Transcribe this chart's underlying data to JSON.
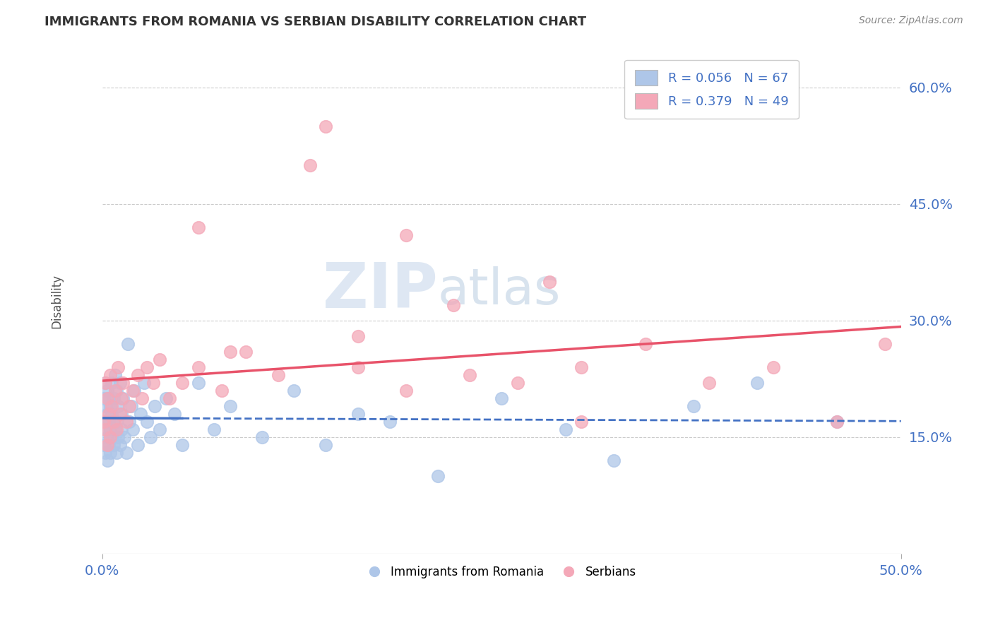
{
  "title": "IMMIGRANTS FROM ROMANIA VS SERBIAN DISABILITY CORRELATION CHART",
  "source": "Source: ZipAtlas.com",
  "ylabel": "Disability",
  "xlim": [
    0.0,
    0.5
  ],
  "ylim": [
    0.0,
    0.65
  ],
  "x_ticks": [
    0.0,
    0.5
  ],
  "x_tick_labels": [
    "0.0%",
    "50.0%"
  ],
  "y_ticks": [
    0.15,
    0.3,
    0.45,
    0.6
  ],
  "y_tick_labels": [
    "15.0%",
    "30.0%",
    "45.0%",
    "60.0%"
  ],
  "grid_color": "#cccccc",
  "background_color": "#ffffff",
  "romania_color": "#aec6e8",
  "serbia_color": "#f4a8b8",
  "romania_line_color": "#4472c4",
  "serbia_line_color": "#e8536a",
  "legend_R_romania": "R = 0.056",
  "legend_N_romania": "N = 67",
  "legend_R_serbia": "R = 0.379",
  "legend_N_serbia": "N = 49",
  "watermark_zip": "ZIP",
  "watermark_atlas": "atlas",
  "romania_scatter_x": [
    0.001,
    0.001,
    0.001,
    0.002,
    0.002,
    0.002,
    0.002,
    0.003,
    0.003,
    0.003,
    0.003,
    0.004,
    0.004,
    0.004,
    0.005,
    0.005,
    0.005,
    0.006,
    0.006,
    0.006,
    0.007,
    0.007,
    0.007,
    0.008,
    0.008,
    0.009,
    0.009,
    0.009,
    0.01,
    0.01,
    0.011,
    0.011,
    0.012,
    0.012,
    0.013,
    0.014,
    0.015,
    0.016,
    0.017,
    0.018,
    0.019,
    0.02,
    0.022,
    0.024,
    0.026,
    0.028,
    0.03,
    0.033,
    0.036,
    0.04,
    0.045,
    0.05,
    0.06,
    0.07,
    0.08,
    0.1,
    0.12,
    0.14,
    0.16,
    0.18,
    0.21,
    0.25,
    0.29,
    0.32,
    0.37,
    0.41,
    0.46
  ],
  "romania_scatter_y": [
    0.17,
    0.14,
    0.2,
    0.16,
    0.13,
    0.19,
    0.22,
    0.15,
    0.18,
    0.12,
    0.21,
    0.14,
    0.17,
    0.2,
    0.16,
    0.13,
    0.19,
    0.15,
    0.18,
    0.22,
    0.14,
    0.17,
    0.2,
    0.16,
    0.23,
    0.13,
    0.17,
    0.21,
    0.15,
    0.19,
    0.14,
    0.22,
    0.16,
    0.18,
    0.2,
    0.15,
    0.13,
    0.27,
    0.17,
    0.19,
    0.16,
    0.21,
    0.14,
    0.18,
    0.22,
    0.17,
    0.15,
    0.19,
    0.16,
    0.2,
    0.18,
    0.14,
    0.22,
    0.16,
    0.19,
    0.15,
    0.21,
    0.14,
    0.18,
    0.17,
    0.1,
    0.2,
    0.16,
    0.12,
    0.19,
    0.22,
    0.17
  ],
  "serbia_scatter_x": [
    0.001,
    0.002,
    0.002,
    0.003,
    0.003,
    0.004,
    0.005,
    0.005,
    0.006,
    0.007,
    0.008,
    0.009,
    0.01,
    0.011,
    0.012,
    0.013,
    0.015,
    0.017,
    0.019,
    0.022,
    0.025,
    0.028,
    0.032,
    0.036,
    0.042,
    0.05,
    0.06,
    0.075,
    0.09,
    0.11,
    0.13,
    0.16,
    0.19,
    0.22,
    0.26,
    0.3,
    0.34,
    0.38,
    0.42,
    0.46,
    0.49,
    0.3,
    0.14,
    0.06,
    0.28,
    0.19,
    0.08,
    0.23,
    0.16
  ],
  "serbia_scatter_y": [
    0.17,
    0.16,
    0.22,
    0.14,
    0.2,
    0.18,
    0.15,
    0.23,
    0.19,
    0.17,
    0.21,
    0.16,
    0.24,
    0.18,
    0.2,
    0.22,
    0.17,
    0.19,
    0.21,
    0.23,
    0.2,
    0.24,
    0.22,
    0.25,
    0.2,
    0.22,
    0.24,
    0.21,
    0.26,
    0.23,
    0.5,
    0.24,
    0.41,
    0.32,
    0.22,
    0.24,
    0.27,
    0.22,
    0.24,
    0.17,
    0.27,
    0.17,
    0.55,
    0.42,
    0.35,
    0.21,
    0.26,
    0.23,
    0.28
  ]
}
